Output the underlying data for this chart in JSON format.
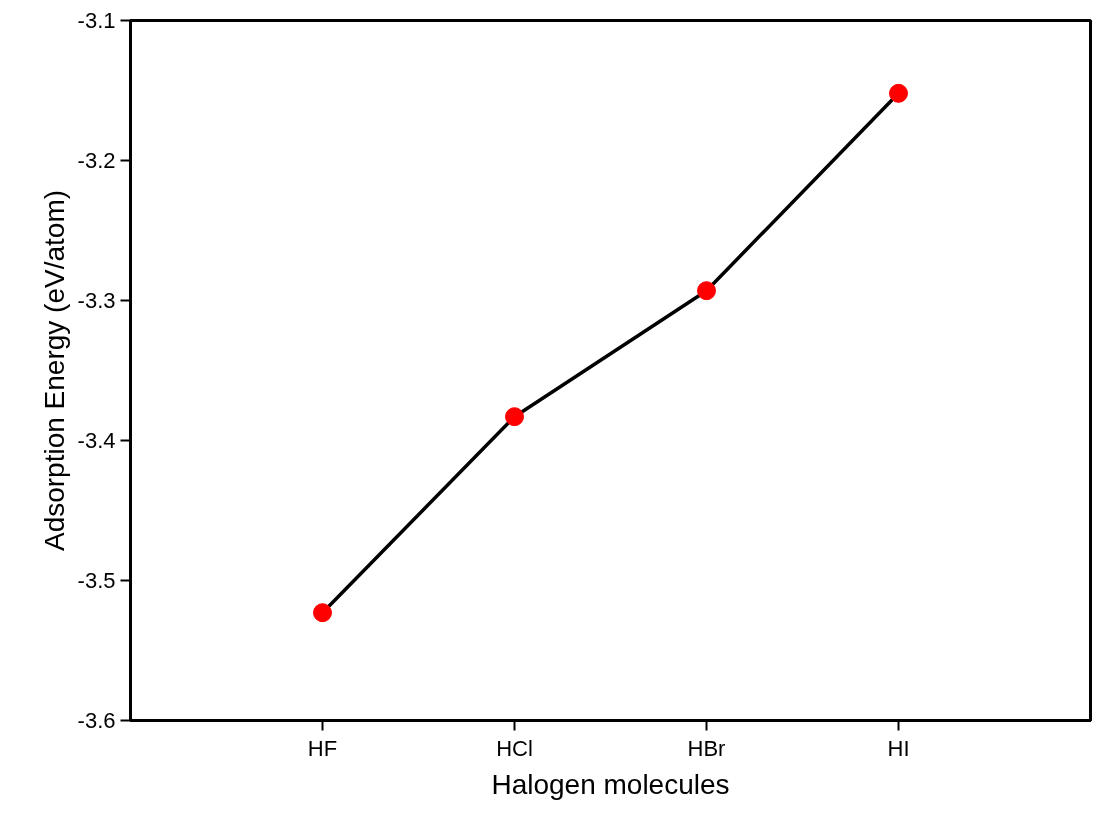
{
  "chart_data": {
    "type": "line",
    "xlabel": "Halogen molecules",
    "ylabel": "Adsorption Energy (eV/atom)",
    "categories": [
      "HF",
      "HCl",
      "HBr",
      "HI"
    ],
    "series": [
      {
        "color": "#000000",
        "colors": [
          "#ff0000",
          "#ff0000",
          "#ff0000",
          "#ff0000"
        ],
        "values": [
          -3.523,
          -3.383,
          -3.293,
          -3.152
        ]
      }
    ],
    "marker": "circle",
    "line_style": "solid",
    "ylim": [
      -3.6,
      -3.1
    ],
    "yticks": [
      -3.6,
      -3.5,
      -3.4,
      -3.3,
      -3.2,
      -3.1
    ],
    "grid": false
  }
}
